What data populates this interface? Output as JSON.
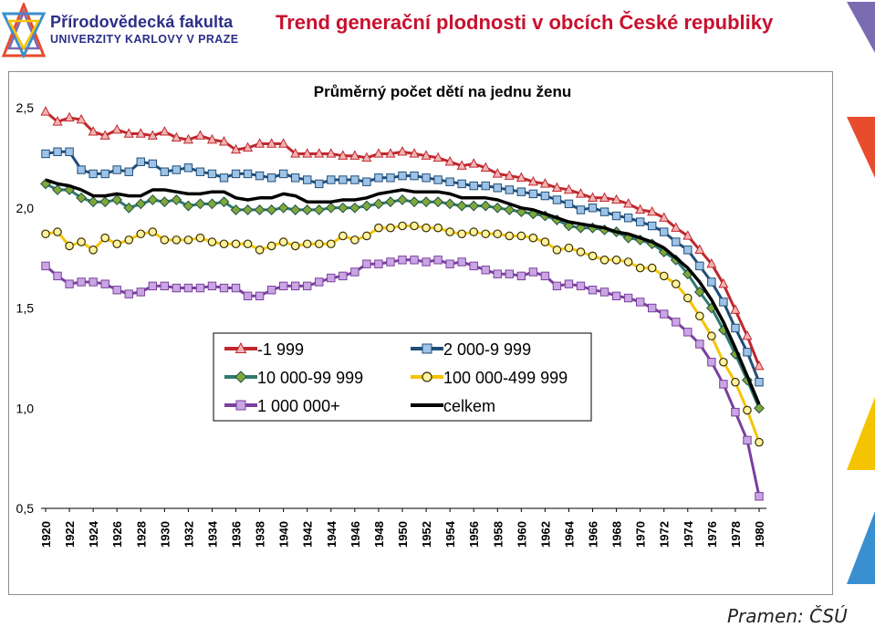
{
  "header": {
    "faculty_name": "Přírodovědecká fakulta",
    "faculty_sub": "UNIVERZITY KARLOVY V PRAZE",
    "slide_title": "Trend generační plodnosti v obcích České republiky"
  },
  "source": "Pramen: ČSÚ",
  "colors": {
    "brand": "#2b2f87",
    "title": "#c8102e",
    "deco": [
      "#7b6bb0",
      "#e84c2e",
      "#f5c400",
      "#3a8fd1"
    ]
  },
  "chart_data": {
    "type": "line",
    "title": "Průměrný počet dětí na jednu ženu",
    "xlabel": "",
    "ylabel": "",
    "ylim": [
      0.5,
      2.5
    ],
    "yticks": [
      "0,5",
      "1,0",
      "1,5",
      "2,0",
      "2,5"
    ],
    "ytick_values": [
      0.5,
      1.0,
      1.5,
      2.0,
      2.5
    ],
    "x": [
      1920,
      1921,
      1922,
      1923,
      1924,
      1925,
      1926,
      1927,
      1928,
      1929,
      1930,
      1931,
      1932,
      1933,
      1934,
      1935,
      1936,
      1937,
      1938,
      1939,
      1940,
      1941,
      1942,
      1943,
      1944,
      1945,
      1946,
      1947,
      1948,
      1949,
      1950,
      1951,
      1952,
      1953,
      1954,
      1955,
      1956,
      1957,
      1958,
      1959,
      1960,
      1961,
      1962,
      1963,
      1964,
      1965,
      1966,
      1967,
      1968,
      1969,
      1970,
      1971,
      1972,
      1973,
      1974,
      1975,
      1976,
      1977,
      1978,
      1979,
      1980
    ],
    "xticks": [
      "1920",
      "1922",
      "1924",
      "1926",
      "1928",
      "1930",
      "1932",
      "1934",
      "1936",
      "1938",
      "1940",
      "1942",
      "1944",
      "1946",
      "1948",
      "1950",
      "1952",
      "1954",
      "1956",
      "1958",
      "1960",
      "1962",
      "1964",
      "1966",
      "1968",
      "1970",
      "1972",
      "1974",
      "1976",
      "1978",
      "1980"
    ],
    "grid": false,
    "legend_position": "center",
    "series": [
      {
        "name": "-1 999",
        "color": "#c0272d",
        "marker": "triangle",
        "values": [
          2.48,
          2.43,
          2.45,
          2.44,
          2.38,
          2.36,
          2.39,
          2.37,
          2.37,
          2.36,
          2.38,
          2.35,
          2.34,
          2.36,
          2.34,
          2.33,
          2.29,
          2.3,
          2.32,
          2.32,
          2.32,
          2.27,
          2.27,
          2.27,
          2.27,
          2.26,
          2.26,
          2.25,
          2.27,
          2.27,
          2.28,
          2.27,
          2.26,
          2.25,
          2.23,
          2.21,
          2.22,
          2.2,
          2.17,
          2.16,
          2.15,
          2.13,
          2.12,
          2.1,
          2.09,
          2.07,
          2.05,
          2.05,
          2.04,
          2.02,
          1.99,
          1.98,
          1.95,
          1.9,
          1.86,
          1.79,
          1.72,
          1.62,
          1.49,
          1.36,
          1.21
        ]
      },
      {
        "name": "2 000-9 999",
        "color": "#1f4e79",
        "marker": "square",
        "values": [
          2.27,
          2.28,
          2.28,
          2.19,
          2.17,
          2.17,
          2.19,
          2.18,
          2.23,
          2.22,
          2.18,
          2.19,
          2.2,
          2.18,
          2.17,
          2.15,
          2.17,
          2.17,
          2.16,
          2.15,
          2.17,
          2.15,
          2.14,
          2.12,
          2.14,
          2.14,
          2.14,
          2.13,
          2.15,
          2.15,
          2.16,
          2.16,
          2.15,
          2.14,
          2.13,
          2.12,
          2.11,
          2.11,
          2.1,
          2.09,
          2.08,
          2.07,
          2.06,
          2.04,
          2.02,
          1.99,
          2.0,
          1.98,
          1.96,
          1.95,
          1.93,
          1.91,
          1.88,
          1.83,
          1.79,
          1.71,
          1.63,
          1.53,
          1.4,
          1.28,
          1.13
        ]
      },
      {
        "name": "10 000-99 999",
        "color": "#2f7a6e",
        "marker": "diamond",
        "values": [
          2.12,
          2.09,
          2.09,
          2.05,
          2.03,
          2.03,
          2.04,
          2.0,
          2.02,
          2.04,
          2.03,
          2.04,
          2.01,
          2.02,
          2.02,
          2.03,
          1.99,
          1.99,
          1.99,
          1.99,
          2.0,
          1.99,
          1.99,
          1.99,
          2.0,
          2.0,
          2.0,
          2.01,
          2.02,
          2.03,
          2.04,
          2.03,
          2.03,
          2.03,
          2.02,
          2.01,
          2.01,
          2.01,
          2.0,
          1.99,
          1.98,
          1.97,
          1.96,
          1.94,
          1.91,
          1.9,
          1.9,
          1.89,
          1.88,
          1.85,
          1.84,
          1.82,
          1.78,
          1.74,
          1.67,
          1.58,
          1.5,
          1.39,
          1.27,
          1.14,
          1.0
        ]
      },
      {
        "name": "100 000-499 999",
        "color": "#f5c400",
        "marker": "circle",
        "values": [
          1.87,
          1.88,
          1.81,
          1.83,
          1.79,
          1.85,
          1.82,
          1.84,
          1.87,
          1.88,
          1.84,
          1.84,
          1.84,
          1.85,
          1.83,
          1.82,
          1.82,
          1.82,
          1.79,
          1.81,
          1.83,
          1.81,
          1.82,
          1.82,
          1.82,
          1.86,
          1.84,
          1.86,
          1.9,
          1.9,
          1.91,
          1.91,
          1.9,
          1.9,
          1.88,
          1.87,
          1.88,
          1.87,
          1.87,
          1.86,
          1.86,
          1.85,
          1.83,
          1.79,
          1.8,
          1.78,
          1.76,
          1.74,
          1.74,
          1.73,
          1.7,
          1.7,
          1.66,
          1.62,
          1.55,
          1.46,
          1.36,
          1.23,
          1.13,
          0.99,
          0.83
        ]
      },
      {
        "name": "1 000 000+",
        "color": "#7b3f9e",
        "marker": "square",
        "values": [
          1.71,
          1.66,
          1.62,
          1.63,
          1.63,
          1.62,
          1.59,
          1.57,
          1.58,
          1.61,
          1.61,
          1.6,
          1.6,
          1.6,
          1.61,
          1.6,
          1.6,
          1.56,
          1.56,
          1.59,
          1.61,
          1.61,
          1.61,
          1.63,
          1.65,
          1.66,
          1.68,
          1.72,
          1.72,
          1.73,
          1.74,
          1.74,
          1.73,
          1.74,
          1.72,
          1.73,
          1.71,
          1.69,
          1.67,
          1.67,
          1.66,
          1.68,
          1.66,
          1.61,
          1.62,
          1.61,
          1.59,
          1.58,
          1.56,
          1.55,
          1.53,
          1.5,
          1.47,
          1.43,
          1.38,
          1.32,
          1.23,
          1.12,
          0.98,
          0.84,
          0.56
        ]
      },
      {
        "name": "celkem",
        "color": "#000000",
        "marker": "none",
        "values": [
          2.14,
          2.12,
          2.11,
          2.09,
          2.06,
          2.06,
          2.07,
          2.06,
          2.06,
          2.09,
          2.09,
          2.08,
          2.07,
          2.07,
          2.08,
          2.08,
          2.05,
          2.04,
          2.05,
          2.05,
          2.07,
          2.06,
          2.03,
          2.03,
          2.03,
          2.04,
          2.04,
          2.05,
          2.07,
          2.08,
          2.09,
          2.08,
          2.08,
          2.08,
          2.07,
          2.05,
          2.05,
          2.05,
          2.04,
          2.02,
          2.0,
          1.99,
          1.97,
          1.95,
          1.93,
          1.92,
          1.91,
          1.9,
          1.88,
          1.87,
          1.85,
          1.83,
          1.8,
          1.75,
          1.7,
          1.63,
          1.54,
          1.43,
          1.3,
          1.16,
          1.02
        ]
      }
    ]
  }
}
